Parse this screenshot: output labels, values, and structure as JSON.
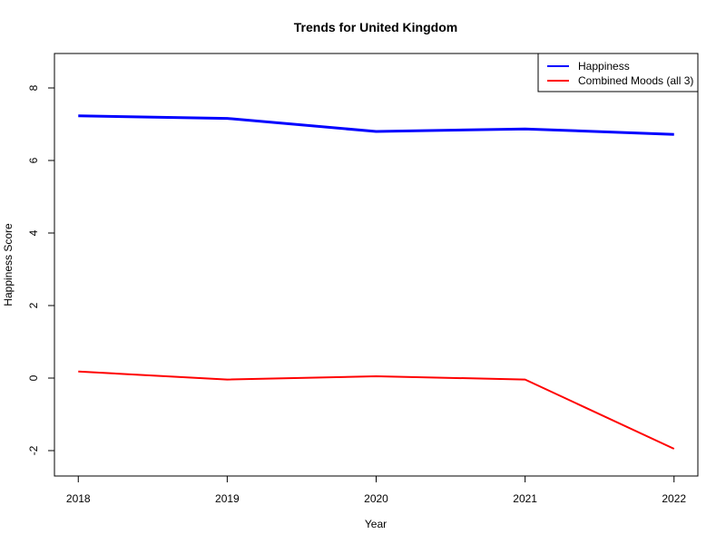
{
  "chart_data": {
    "type": "line",
    "title": "Trends for United Kingdom",
    "xlabel": "Year",
    "ylabel": "Happiness Score",
    "x": [
      2018,
      2019,
      2020,
      2021,
      2022
    ],
    "x_ticks": [
      "2018",
      "2019",
      "2020",
      "2021",
      "2022"
    ],
    "y_ticks": [
      "-2",
      "0",
      "2",
      "4",
      "6",
      "8"
    ],
    "ylim": [
      -2.7,
      8.95
    ],
    "grid": false,
    "legend_position": "top-right",
    "series": [
      {
        "name": "Happiness",
        "color": "#0000ff",
        "values": [
          7.23,
          7.16,
          6.8,
          6.87,
          6.72
        ]
      },
      {
        "name": "Combined Moods (all 3)",
        "color": "#ff0000",
        "values": [
          0.18,
          -0.04,
          0.05,
          -0.04,
          -1.95
        ]
      }
    ]
  }
}
